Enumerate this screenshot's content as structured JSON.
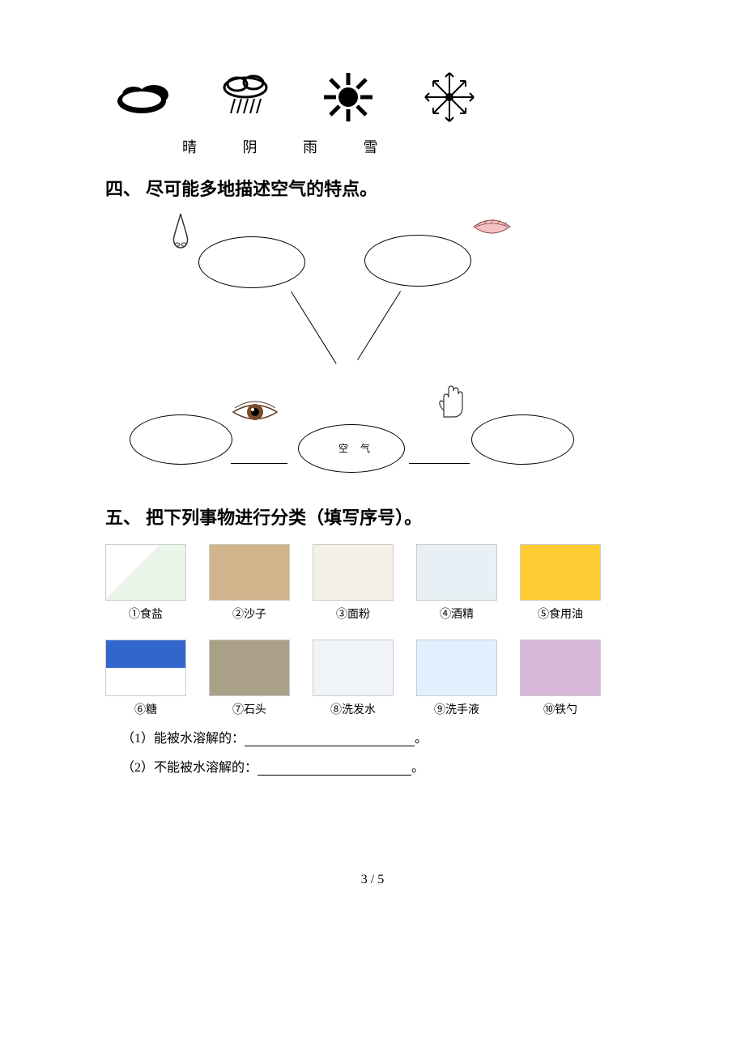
{
  "weather": {
    "labels_text": "晴 阴 雨 雪"
  },
  "section4": {
    "heading": "四、 尽可能多地描述空气的特点。",
    "center_label": "空 气"
  },
  "section5": {
    "heading": "五、 把下列事物进行分类（填写序号）。",
    "items_row1": [
      {
        "num": "①",
        "name": "食盐",
        "thumb": "thumb-salt"
      },
      {
        "num": "②",
        "name": "沙子",
        "thumb": "thumb-sand"
      },
      {
        "num": "③",
        "name": "面粉",
        "thumb": "thumb-flour"
      },
      {
        "num": "④",
        "name": "酒精",
        "thumb": "thumb-alcohol"
      },
      {
        "num": "⑤",
        "name": "食用油",
        "thumb": "thumb-oil"
      }
    ],
    "items_row2": [
      {
        "num": "⑥",
        "name": "糖",
        "thumb": "thumb-sugar"
      },
      {
        "num": "⑦",
        "name": "石头",
        "thumb": "thumb-stone"
      },
      {
        "num": "⑧",
        "name": "洗发水",
        "thumb": "thumb-shampoo"
      },
      {
        "num": "⑨",
        "name": "洗手液",
        "thumb": "thumb-soap"
      },
      {
        "num": "⑩",
        "name": "铁勺",
        "thumb": "thumb-spoon"
      }
    ],
    "q1_prefix": "（1）能被水溶解的：",
    "q1_suffix": "。",
    "q2_prefix": "（2）不能被水溶解的：",
    "q2_suffix": "。"
  },
  "page_number": "3 / 5"
}
